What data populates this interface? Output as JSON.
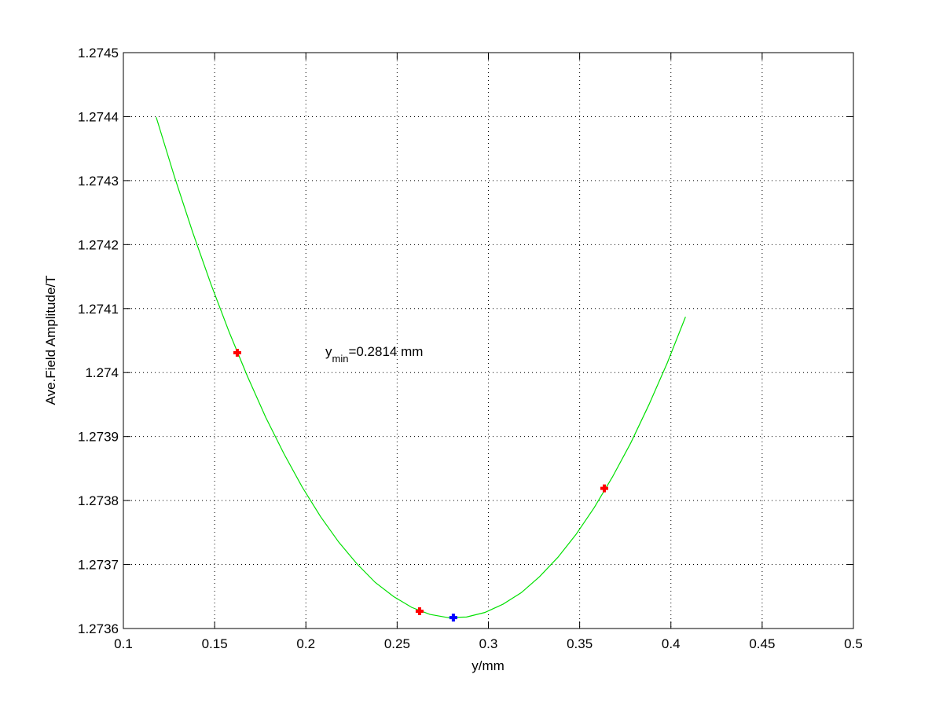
{
  "chart_data": {
    "type": "line",
    "xlabel": "y/mm",
    "ylabel": "Ave.Field Amplitude/T",
    "annotation": {
      "text": "y",
      "subscript": "min",
      "rest": "=0.2814 mm"
    },
    "xlim": [
      0.1,
      0.5
    ],
    "xticks": [
      0.1,
      0.15,
      0.2,
      0.25,
      0.3,
      0.35,
      0.4,
      0.45,
      0.5
    ],
    "ylim": [
      1.2736,
      1.2745
    ],
    "yticks": [
      1.2736,
      1.2737,
      1.2738,
      1.2739,
      1.274,
      1.2741,
      1.2742,
      1.2743,
      1.2744,
      1.2745
    ],
    "grid": true,
    "series": [
      {
        "color": "#00e000",
        "style": "line",
        "x": [
          0.118,
          0.128,
          0.138,
          0.148,
          0.158,
          0.168,
          0.178,
          0.188,
          0.198,
          0.208,
          0.218,
          0.228,
          0.238,
          0.248,
          0.258,
          0.268,
          0.278,
          0.288,
          0.298,
          0.308,
          0.318,
          0.328,
          0.338,
          0.348,
          0.358,
          0.368,
          0.378,
          0.388,
          0.398,
          0.408
        ],
        "values": [
          1.274399,
          1.274306,
          1.274219,
          1.274138,
          1.274063,
          1.273994,
          1.27393,
          1.273873,
          1.273821,
          1.273775,
          1.273735,
          1.273701,
          1.273672,
          1.27365,
          1.273633,
          1.273622,
          1.273617,
          1.273618,
          1.273625,
          1.273638,
          1.273656,
          1.273681,
          1.273711,
          1.273747,
          1.273789,
          1.273837,
          1.27389,
          1.27395,
          1.274015,
          1.274087
        ]
      },
      {
        "color": "#ff0000",
        "style": "marker",
        "x": [
          0.1624,
          0.2623,
          0.3635
        ],
        "values": [
          1.274031,
          1.273627,
          1.273819
        ]
      },
      {
        "color": "#0000ff",
        "style": "marker",
        "x": [
          0.2808
        ],
        "values": [
          1.273617
        ]
      }
    ]
  }
}
